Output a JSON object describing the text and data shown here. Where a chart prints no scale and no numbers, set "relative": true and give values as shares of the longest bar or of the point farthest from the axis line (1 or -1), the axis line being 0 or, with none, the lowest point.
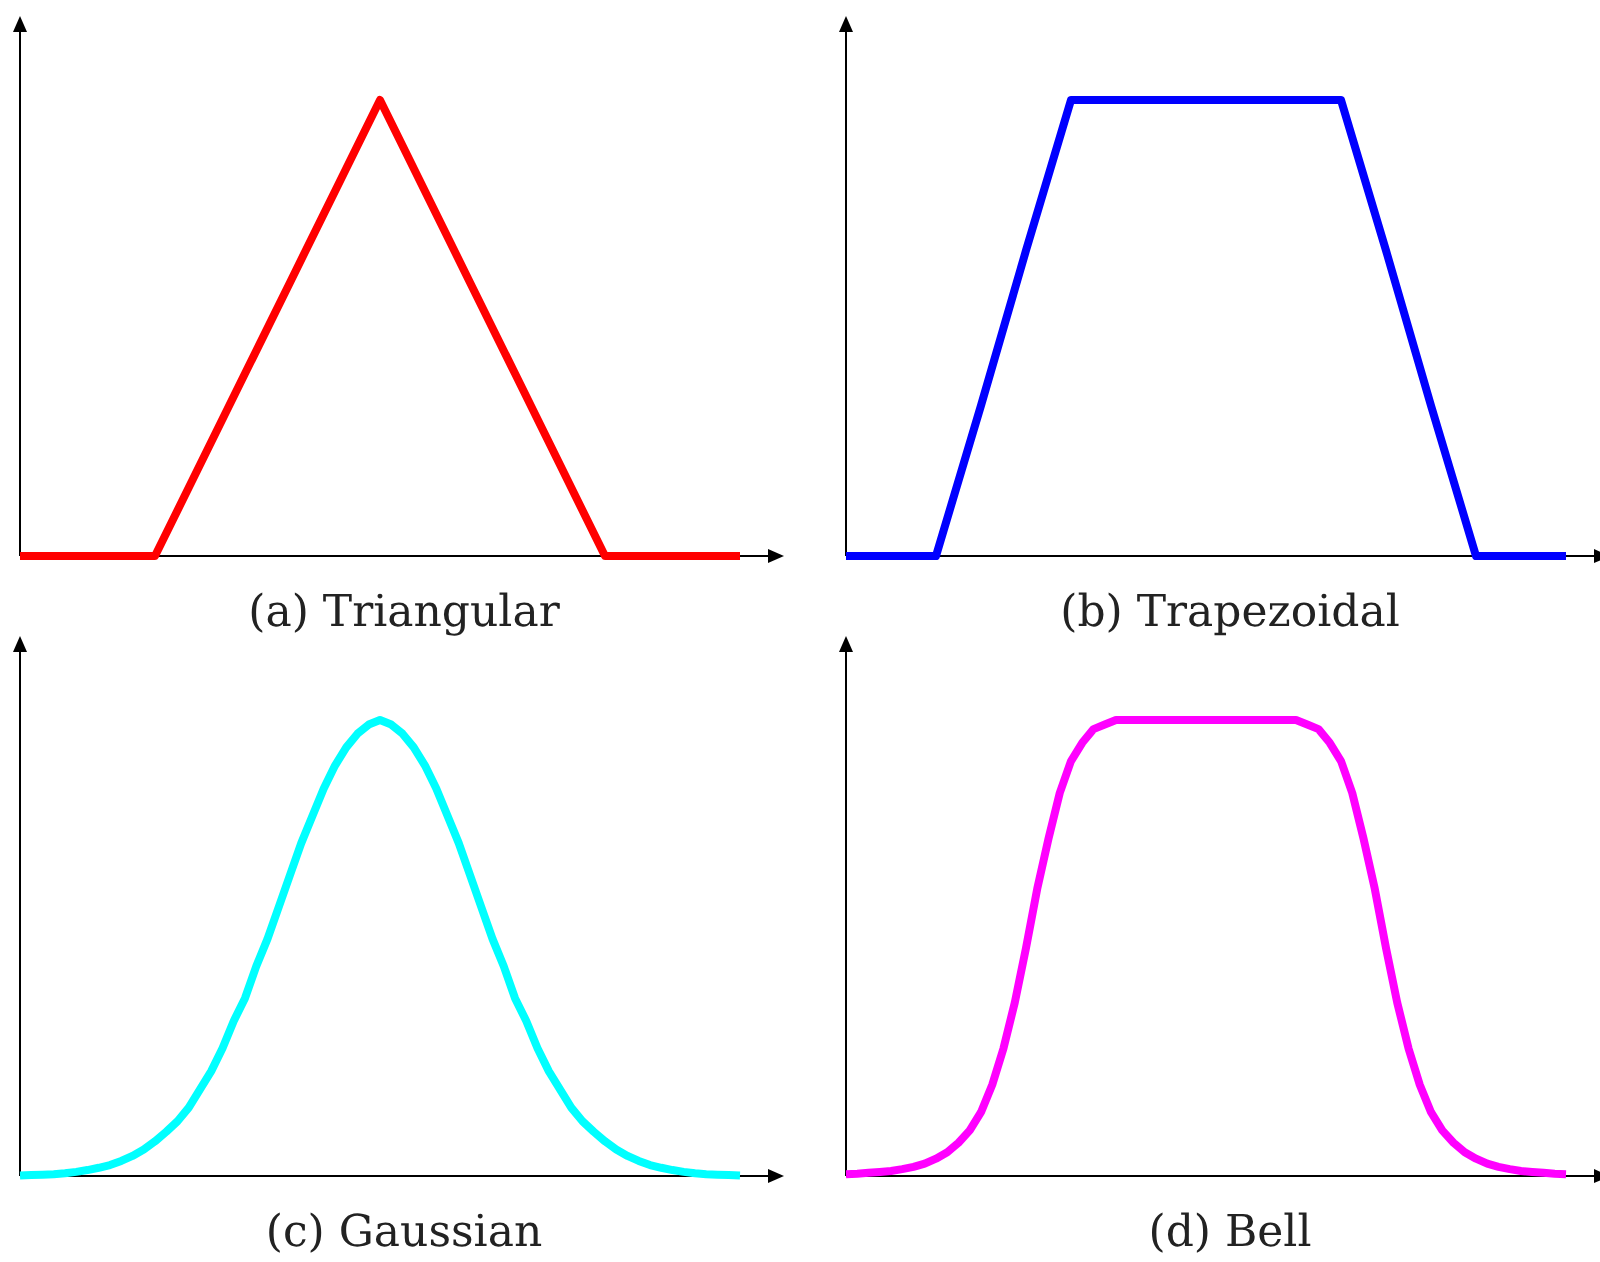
{
  "chart_data": [
    {
      "type": "line",
      "title": "(a) Triangular",
      "relative": true,
      "color": "#ff0000",
      "categories": [
        null,
        null,
        null,
        null,
        null,
        null,
        null,
        null,
        null,
        null,
        null,
        null,
        null,
        null,
        null,
        null,
        null
      ],
      "values": [
        0,
        0,
        0,
        0,
        0.2,
        0.4,
        0.6,
        0.8,
        1,
        0.8,
        0.6,
        0.4,
        0.2,
        0,
        0,
        0,
        0
      ]
    },
    {
      "type": "line",
      "title": "(b) Trapezoidal",
      "relative": true,
      "color": "#0000ff",
      "categories": [
        null,
        null,
        null,
        null,
        null,
        null,
        null,
        null,
        null,
        null,
        null,
        null,
        null,
        null,
        null,
        null,
        null
      ],
      "values": [
        0,
        0,
        0,
        0.33,
        0.67,
        1,
        1,
        1,
        1,
        1,
        1,
        1,
        0.67,
        0.33,
        0,
        0,
        0
      ]
    },
    {
      "type": "line",
      "title": "(c) Gaussian",
      "relative": true,
      "color": "#00ffff",
      "categories": [
        null,
        null,
        null,
        null,
        null,
        null,
        null,
        null,
        null,
        null,
        null,
        null,
        null,
        null,
        null,
        null,
        null,
        null,
        null,
        null,
        null,
        null,
        null,
        null,
        null,
        null,
        null,
        null,
        null,
        null,
        null,
        null,
        null,
        null,
        null,
        null,
        null,
        null,
        null,
        null,
        null,
        null,
        null,
        null,
        null,
        null,
        null,
        null,
        null,
        null,
        null,
        null,
        null,
        null,
        null,
        null,
        null,
        null,
        null,
        null,
        null,
        null,
        null,
        null,
        null
      ],
      "values": [
        0.001,
        0.002,
        0.003,
        0.004,
        0.006,
        0.009,
        0.013,
        0.018,
        0.024,
        0.033,
        0.044,
        0.058,
        0.076,
        0.097,
        0.12,
        0.15,
        0.19,
        0.23,
        0.28,
        0.34,
        0.39,
        0.46,
        0.52,
        0.59,
        0.66,
        0.73,
        0.79,
        0.85,
        0.9,
        0.94,
        0.97,
        0.99,
        1,
        0.99,
        0.97,
        0.94,
        0.9,
        0.85,
        0.79,
        0.73,
        0.66,
        0.59,
        0.52,
        0.46,
        0.39,
        0.34,
        0.28,
        0.23,
        0.19,
        0.15,
        0.12,
        0.097,
        0.076,
        0.058,
        0.044,
        0.033,
        0.024,
        0.018,
        0.013,
        0.009,
        0.006,
        0.004,
        0.003,
        0.002,
        0.001
      ]
    },
    {
      "type": "line",
      "title": "(d) Bell",
      "relative": true,
      "color": "#ff00ff",
      "categories": [
        null,
        null,
        null,
        null,
        null,
        null,
        null,
        null,
        null,
        null,
        null,
        null,
        null,
        null,
        null,
        null,
        null,
        null,
        null,
        null,
        null,
        null,
        null,
        null,
        null,
        null,
        null,
        null,
        null,
        null,
        null,
        null,
        null,
        null,
        null,
        null,
        null,
        null,
        null,
        null,
        null,
        null,
        null,
        null,
        null,
        null,
        null,
        null,
        null,
        null,
        null,
        null,
        null,
        null,
        null,
        null,
        null,
        null,
        null,
        null,
        null,
        null,
        null,
        null,
        null
      ],
      "values": [
        0.004,
        0.005,
        0.007,
        0.009,
        0.011,
        0.015,
        0.02,
        0.027,
        0.038,
        0.052,
        0.073,
        0.1,
        0.14,
        0.2,
        0.28,
        0.38,
        0.5,
        0.63,
        0.74,
        0.84,
        0.91,
        0.95,
        0.98,
        0.99,
        1,
        1,
        1,
        1,
        1,
        1,
        1,
        1,
        1,
        1,
        1,
        1,
        1,
        1,
        1,
        1,
        1,
        0.99,
        0.98,
        0.95,
        0.91,
        0.84,
        0.74,
        0.63,
        0.5,
        0.38,
        0.28,
        0.2,
        0.14,
        0.1,
        0.073,
        0.052,
        0.038,
        0.027,
        0.02,
        0.015,
        0.011,
        0.009,
        0.007,
        0.005,
        0.004
      ]
    }
  ]
}
